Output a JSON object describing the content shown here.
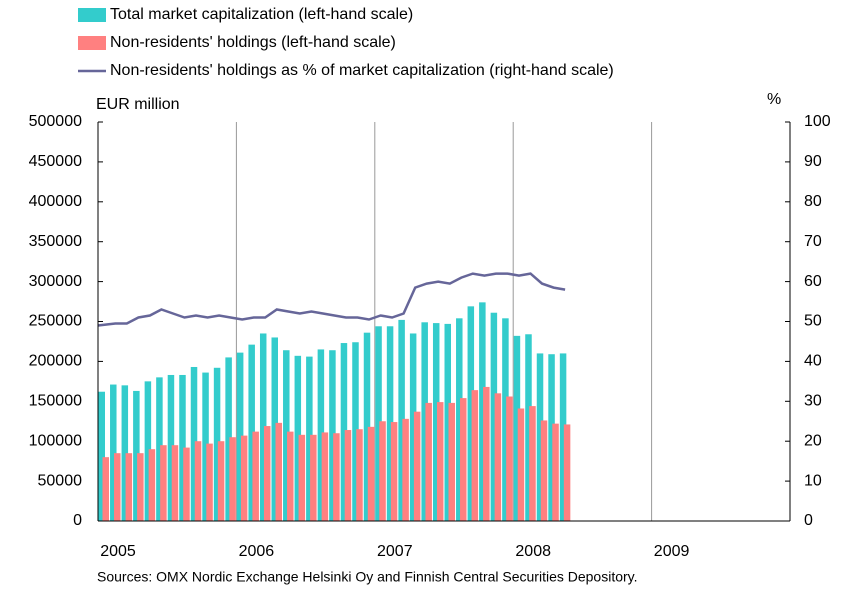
{
  "chart_data": {
    "type": "bar_line",
    "y_label": "EUR million",
    "y2_label": "%",
    "source": "Sources: OMX Nordic Exchange Helsinki Oy and Finnish Central Securities Depository.",
    "categories": [
      "2005",
      null,
      null,
      null,
      null,
      null,
      null,
      null,
      null,
      null,
      null,
      null,
      "2006",
      null,
      null,
      null,
      null,
      null,
      null,
      null,
      null,
      null,
      null,
      null,
      "2007",
      null,
      null,
      null,
      null,
      null,
      null,
      null,
      null,
      null,
      null,
      null,
      "2008",
      null,
      null,
      null,
      null,
      null,
      null,
      null,
      null,
      null,
      null,
      null,
      "2009",
      null,
      null,
      null,
      null,
      null,
      null,
      null,
      null,
      null,
      null,
      null
    ],
    "series": [
      {
        "name": "Total market capitalization (left-hand scale)",
        "color": "#33cccc",
        "type": "bar",
        "values": [
          162000,
          171000,
          170000,
          163000,
          175000,
          180000,
          183000,
          183000,
          193000,
          186000,
          192000,
          205000,
          211000,
          221000,
          235000,
          230000,
          214000,
          207000,
          206000,
          215000,
          214000,
          223000,
          224000,
          236000,
          244000,
          244000,
          252000,
          235000,
          249000,
          248000,
          247000,
          254000,
          269000,
          274000,
          261000,
          254000,
          232000,
          234000,
          210000,
          209000,
          210000,
          null,
          null,
          null,
          null,
          null,
          null,
          null,
          null,
          null,
          null,
          null,
          null,
          null,
          null,
          null,
          null,
          null,
          null,
          null
        ]
      },
      {
        "name": "Non-residents' holdings (left-hand scale)",
        "color": "#ff8080",
        "type": "bar",
        "values": [
          80000,
          85000,
          85000,
          85000,
          90000,
          95000,
          95000,
          92000,
          100000,
          97000,
          100000,
          105000,
          107000,
          112000,
          119000,
          123000,
          112000,
          108000,
          108000,
          111000,
          110000,
          114000,
          115000,
          118000,
          125000,
          124000,
          128000,
          137000,
          148000,
          149000,
          148000,
          154000,
          164000,
          168000,
          160000,
          156000,
          141000,
          144000,
          126000,
          122000,
          121000,
          null,
          null,
          null,
          null,
          null,
          null,
          null,
          null,
          null,
          null,
          null,
          null,
          null,
          null,
          null,
          null,
          null,
          null,
          null
        ]
      },
      {
        "name": "Non-residents' holdings as % of market capitalization (right-hand scale)",
        "color": "#666699",
        "type": "line",
        "axis": "y2",
        "values": [
          49,
          49.5,
          49.5,
          51,
          51.5,
          53,
          52,
          51,
          51.5,
          51,
          51.5,
          51,
          50.5,
          51,
          51,
          53,
          52.5,
          52,
          52.5,
          52,
          51.5,
          51,
          51,
          50.5,
          51.5,
          51,
          52,
          58.5,
          59.5,
          60,
          59.5,
          61,
          62,
          61.5,
          62,
          62,
          61.5,
          62,
          59.5,
          58.5,
          58,
          null,
          null,
          null,
          null,
          null,
          null,
          null,
          null,
          null,
          null,
          null,
          null,
          null,
          null,
          null,
          null,
          null,
          null,
          null
        ]
      }
    ],
    "ylim": [
      0,
      500000
    ],
    "yticks": [
      0,
      50000,
      100000,
      150000,
      200000,
      250000,
      300000,
      350000,
      400000,
      450000,
      500000
    ],
    "y2lim": [
      0,
      100
    ],
    "y2ticks": [
      0,
      10,
      20,
      30,
      40,
      50,
      60,
      70,
      80,
      90,
      100
    ],
    "grid": "x"
  }
}
